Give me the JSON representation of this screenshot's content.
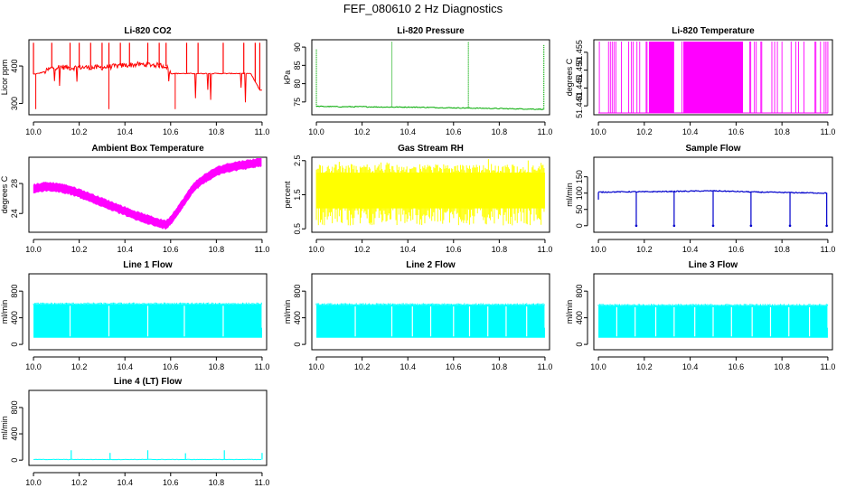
{
  "title": "FEF_080610  2 Hz Diagnostics",
  "chart_data": [
    {
      "type": "line",
      "title": "Li-820 CO2",
      "ylabel": "Licor ppm",
      "color": "#ff0000",
      "xlim": [
        9.98,
        11.02
      ],
      "ylim": [
        270,
        470
      ],
      "yticks": [
        "300",
        "400"
      ],
      "ytick_values": [
        300,
        400
      ],
      "xticks": [
        "10.0",
        "10.2",
        "10.4",
        "10.6",
        "10.8",
        "11.0"
      ],
      "xtick_values": [
        10.0,
        10.2,
        10.4,
        10.6,
        10.8,
        11.0
      ],
      "series": [
        {
          "x": [
            10.0,
            10.02,
            10.05,
            10.08,
            10.12,
            10.16,
            10.2,
            10.25,
            10.3,
            10.35,
            10.4,
            10.45,
            10.5,
            10.55,
            10.58,
            10.6,
            10.65,
            10.7,
            10.75,
            10.8,
            10.85,
            10.9,
            10.95,
            10.99
          ],
          "values": [
            378,
            380,
            385,
            395,
            398,
            395,
            397,
            396,
            396,
            399,
            402,
            404,
            404,
            402,
            400,
            380,
            380,
            380,
            380,
            380,
            380,
            380,
            380,
            336
          ]
        }
      ]
    },
    {
      "type": "line",
      "title": "Li-820 Pressure",
      "ylabel": "kPa",
      "color": "#00aa00",
      "xlim": [
        9.98,
        11.02
      ],
      "ylim": [
        71.5,
        92
      ],
      "yticks": [
        "75",
        "80",
        "85",
        "90"
      ],
      "ytick_values": [
        75,
        80,
        85,
        90
      ],
      "xticks": [
        "10.0",
        "10.2",
        "10.4",
        "10.6",
        "10.8",
        "11.0"
      ],
      "xtick_values": [
        10.0,
        10.2,
        10.4,
        10.6,
        10.8,
        11.0
      ],
      "series": [
        {
          "x": [
            10.0,
            10.1,
            10.2,
            10.3,
            10.4,
            10.5,
            10.6,
            10.7,
            10.8,
            10.9,
            11.0
          ],
          "values": [
            73.8,
            73.7,
            73.7,
            73.6,
            73.6,
            73.5,
            73.4,
            73.3,
            73.2,
            73.1,
            73.0
          ]
        }
      ]
    },
    {
      "type": "line",
      "title": "Li-820 Temperature",
      "ylabel": "degrees C",
      "color": "#ff00ff",
      "xlim": [
        9.98,
        11.02
      ],
      "ylim": [
        51.4375,
        51.4585
      ],
      "yticks": [
        "51.440",
        "51.445",
        "51.450",
        "51.455"
      ],
      "ytick_values": [
        51.44,
        51.445,
        51.45,
        51.455
      ],
      "xticks": [
        "10.0",
        "10.2",
        "10.4",
        "10.6",
        "10.8",
        "11.0"
      ],
      "xtick_values": [
        10.0,
        10.2,
        10.4,
        10.6,
        10.8,
        11.0
      ],
      "levels": [
        51.438,
        51.458
      ]
    },
    {
      "type": "line",
      "title": "Ambient Box Temperature",
      "ylabel": "degrees C",
      "color": "#ff00ff",
      "xlim": [
        9.98,
        11.02
      ],
      "ylim": [
        21.5,
        31.5
      ],
      "yticks": [
        "24",
        "28"
      ],
      "ytick_values": [
        24,
        28
      ],
      "xticks": [
        "10.0",
        "10.2",
        "10.4",
        "10.6",
        "10.8",
        "11.0"
      ],
      "xtick_values": [
        10.0,
        10.2,
        10.4,
        10.6,
        10.8,
        11.0
      ],
      "series": [
        {
          "x": [
            10.0,
            10.05,
            10.1,
            10.15,
            10.2,
            10.25,
            10.3,
            10.35,
            10.4,
            10.45,
            10.5,
            10.55,
            10.58,
            10.6,
            10.65,
            10.7,
            10.75,
            10.8,
            10.85,
            10.9,
            10.95,
            11.0
          ],
          "values": [
            27.3,
            27.6,
            27.5,
            27.2,
            26.7,
            26.1,
            25.5,
            24.9,
            24.3,
            23.7,
            23.2,
            22.7,
            22.5,
            23.1,
            25.2,
            27.5,
            28.7,
            29.6,
            30.1,
            30.4,
            30.6,
            30.9
          ]
        }
      ]
    },
    {
      "type": "line",
      "title": "Gas Stream RH",
      "ylabel": "percent",
      "color": "#ffff00",
      "xlim": [
        9.98,
        11.02
      ],
      "ylim": [
        0.4,
        2.6
      ],
      "yticks": [
        "0.5",
        "1.5",
        "2.5"
      ],
      "ytick_values": [
        0.5,
        1.5,
        2.5
      ],
      "xticks": [
        "10.0",
        "10.2",
        "10.4",
        "10.6",
        "10.8",
        "11.0"
      ],
      "xtick_values": [
        10.0,
        10.2,
        10.4,
        10.6,
        10.8,
        11.0
      ],
      "range": [
        0.6,
        2.4
      ]
    },
    {
      "type": "line",
      "title": "Sample Flow",
      "ylabel": "ml/min",
      "color": "#0000cc",
      "xlim": [
        9.98,
        11.02
      ],
      "ylim": [
        -20,
        210
      ],
      "yticks": [
        "0",
        "50",
        "100",
        "150"
      ],
      "ytick_values": [
        0,
        50,
        100,
        150
      ],
      "xticks": [
        "10.0",
        "10.2",
        "10.4",
        "10.6",
        "10.8",
        "11.0"
      ],
      "xtick_values": [
        10.0,
        10.2,
        10.4,
        10.6,
        10.8,
        11.0
      ],
      "series": [
        {
          "x": [
            10.0,
            10.1,
            10.2,
            10.3,
            10.4,
            10.5,
            10.6,
            10.7,
            10.8,
            10.9,
            11.0
          ],
          "values": [
            103,
            104,
            104,
            105,
            106,
            107,
            105,
            103,
            102,
            101,
            100
          ]
        }
      ],
      "dips_x": [
        10.165,
        10.33,
        10.5,
        10.665,
        10.835,
        10.995
      ]
    },
    {
      "type": "line",
      "title": "Line 1 Flow",
      "ylabel": "ml/min",
      "color": "#00ffff",
      "xlim": [
        9.98,
        11.02
      ],
      "ylim": [
        -80,
        1060
      ],
      "yticks": [
        "0",
        "400",
        "800"
      ],
      "ytick_values": [
        0,
        400,
        800
      ],
      "xticks": [
        "10.0",
        "10.2",
        "10.4",
        "10.6",
        "10.8",
        "11.0"
      ],
      "xtick_values": [
        10.0,
        10.2,
        10.4,
        10.6,
        10.8,
        11.0
      ],
      "range": [
        100,
        600
      ],
      "gaps_x": [
        10.16,
        10.33,
        10.5,
        10.66,
        10.83
      ]
    },
    {
      "type": "line",
      "title": "Line 2 Flow",
      "ylabel": "ml/min",
      "color": "#00ffff",
      "xlim": [
        9.98,
        11.02
      ],
      "ylim": [
        -80,
        1060
      ],
      "yticks": [
        "0",
        "400",
        "800"
      ],
      "ytick_values": [
        0,
        400,
        800
      ],
      "xticks": [
        "10.0",
        "10.2",
        "10.4",
        "10.6",
        "10.8",
        "11.0"
      ],
      "xtick_values": [
        10.0,
        10.2,
        10.4,
        10.6,
        10.8,
        11.0
      ],
      "range": [
        100,
        590
      ],
      "gaps_x": [
        10.17,
        10.33,
        10.42,
        10.5,
        10.6,
        10.67,
        10.75,
        10.83,
        10.92
      ]
    },
    {
      "type": "line",
      "title": "Line 3 Flow",
      "ylabel": "ml/min",
      "color": "#00ffff",
      "xlim": [
        9.98,
        11.02
      ],
      "ylim": [
        -80,
        1060
      ],
      "yticks": [
        "0",
        "400",
        "800"
      ],
      "ytick_values": [
        0,
        400,
        800
      ],
      "xticks": [
        "10.0",
        "10.2",
        "10.4",
        "10.6",
        "10.8",
        "11.0"
      ],
      "xtick_values": [
        10.0,
        10.2,
        10.4,
        10.6,
        10.8,
        11.0
      ],
      "range": [
        100,
        580
      ],
      "gaps_x": [
        10.08,
        10.16,
        10.25,
        10.33,
        10.42,
        10.5,
        10.58,
        10.67,
        10.75,
        10.83,
        10.92
      ]
    },
    {
      "type": "line",
      "title": "Line 4 (LT) Flow",
      "ylabel": "ml/min",
      "color": "#00ffff",
      "xlim": [
        9.98,
        11.02
      ],
      "ylim": [
        -80,
        1060
      ],
      "yticks": [
        "0",
        "400",
        "800"
      ],
      "ytick_values": [
        0,
        400,
        800
      ],
      "xticks": [
        "10.0",
        "10.2",
        "10.4",
        "10.6",
        "10.8",
        "11.0"
      ],
      "xtick_values": [
        10.0,
        10.2,
        10.4,
        10.6,
        10.8,
        11.0
      ],
      "series": [
        {
          "x": [
            10.0,
            11.0
          ],
          "values": [
            10,
            10
          ]
        }
      ],
      "spikes": [
        {
          "x": 10.165,
          "value": 150
        },
        {
          "x": 10.335,
          "value": 110
        },
        {
          "x": 10.5,
          "value": 150
        },
        {
          "x": 10.665,
          "value": 105
        },
        {
          "x": 10.835,
          "value": 150
        },
        {
          "x": 11.0,
          "value": 110
        }
      ]
    }
  ]
}
